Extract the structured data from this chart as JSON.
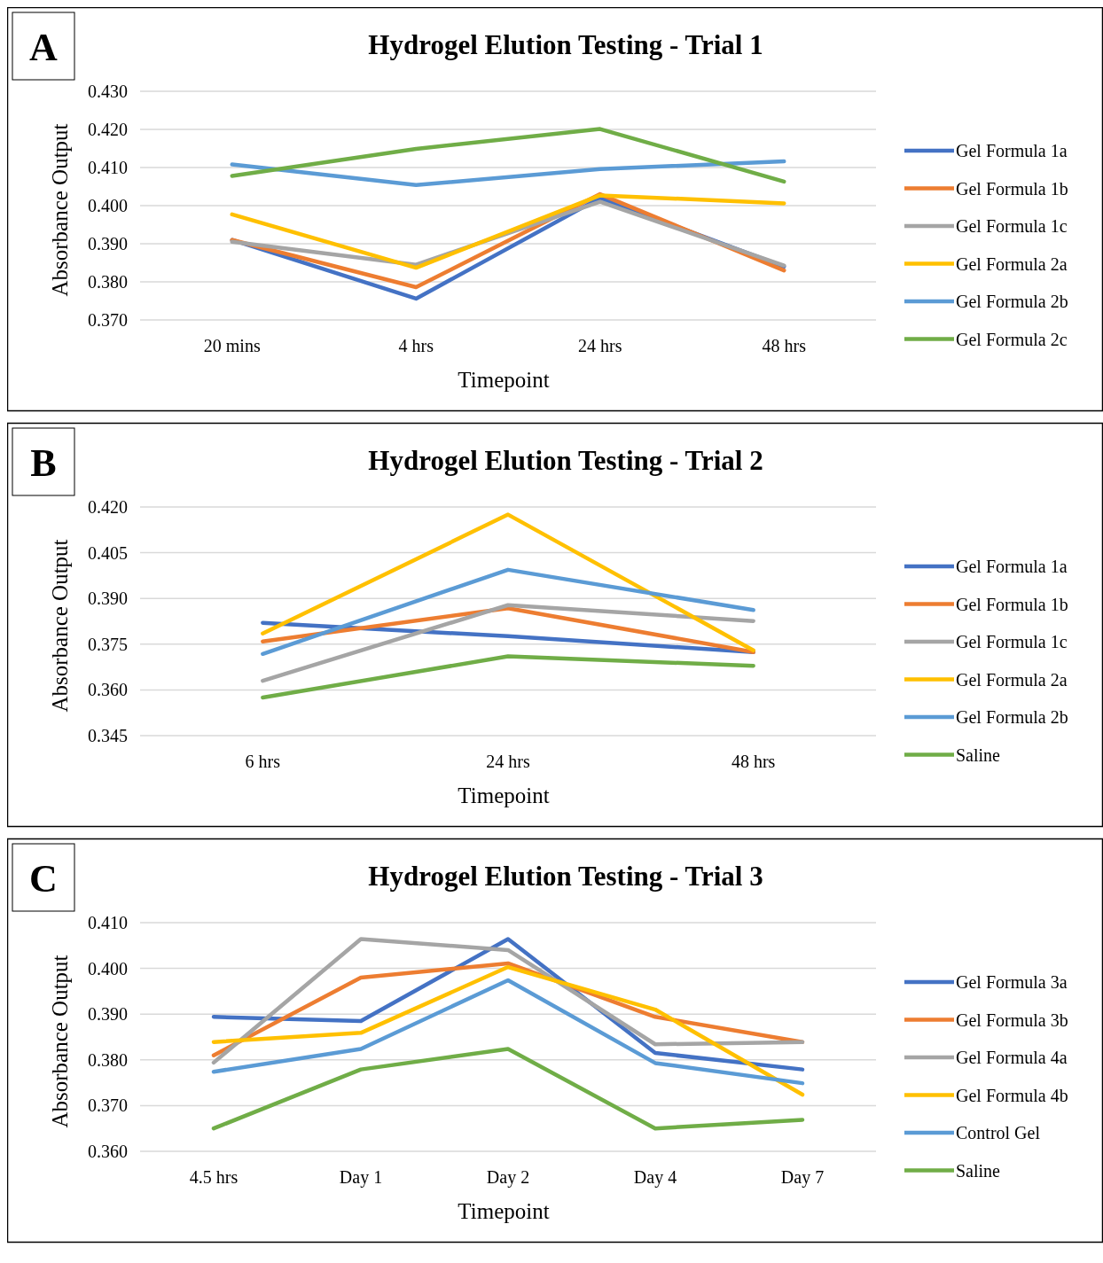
{
  "chart_data": [
    {
      "type": "line",
      "title": "Hydrogel Elution Testing - Trial 1",
      "xlabel": "Timepoint",
      "ylabel": "Absorbance Output",
      "annotations": [
        "A"
      ],
      "categories": [
        "20 mins",
        "4 hrs",
        "24 hrs",
        "48 hrs"
      ],
      "ylim": [
        0.37,
        0.43
      ],
      "yticks": [
        {
          "value": 0.37,
          "label": "0.370"
        },
        {
          "value": 0.38,
          "label": "0.380"
        },
        {
          "value": 0.39,
          "label": "0.390"
        },
        {
          "value": 0.4,
          "label": "0.400"
        },
        {
          "value": 0.41,
          "label": "0.410"
        },
        {
          "value": 0.42,
          "label": "0.420"
        },
        {
          "value": 0.43,
          "label": "0.430"
        }
      ],
      "grid": "y",
      "legend": "right",
      "marker": "none",
      "line_style": "solid",
      "series": [
        {
          "name": "Gel Formula 1a",
          "color": "#4472c4",
          "values": [
            0.391,
            0.3756,
            0.402,
            0.384
          ]
        },
        {
          "name": "Gel Formula 1b",
          "color": "#ed7d31",
          "values": [
            0.391,
            0.3786,
            0.403,
            0.383
          ]
        },
        {
          "name": "Gel Formula 1c",
          "color": "#a5a5a5",
          "values": [
            0.3905,
            0.3845,
            0.401,
            0.3843
          ]
        },
        {
          "name": "Gel Formula 2a",
          "color": "#ffc000",
          "values": [
            0.3977,
            0.3837,
            0.4027,
            0.4006
          ]
        },
        {
          "name": "Gel Formula 2b",
          "color": "#5b9bd5",
          "values": [
            0.4108,
            0.4054,
            0.4096,
            0.4116
          ]
        },
        {
          "name": "Gel Formula 2c",
          "color": "#70ad47",
          "values": [
            0.4078,
            0.4149,
            0.4201,
            0.4063
          ]
        }
      ]
    },
    {
      "type": "line",
      "title": "Hydrogel Elution Testing - Trial 2",
      "xlabel": "Timepoint",
      "ylabel": "Absorbance Output",
      "annotations": [
        "B"
      ],
      "categories": [
        "6 hrs",
        "24 hrs",
        "48 hrs"
      ],
      "ylim": [
        0.345,
        0.42
      ],
      "yticks": [
        0.345,
        {
          "value": 0.36,
          "label": "0.360"
        },
        0.375,
        {
          "value": 0.39,
          "label": "0.390"
        },
        0.405,
        {
          "value": 0.42,
          "label": "0.420"
        }
      ],
      "grid": "y",
      "legend": "right",
      "marker": "none",
      "line_style": "solid",
      "series": [
        {
          "name": "Gel Formula 1a",
          "color": "#4472c4",
          "values": [
            0.382,
            0.3776,
            0.3724
          ]
        },
        {
          "name": "Gel Formula 1b",
          "color": "#ed7d31",
          "values": [
            0.3759,
            0.3868,
            0.3724
          ]
        },
        {
          "name": "Gel Formula 1c",
          "color": "#a5a5a5",
          "values": [
            0.363,
            0.3878,
            0.3826
          ]
        },
        {
          "name": "Gel Formula 2a",
          "color": "#ffc000",
          "values": [
            0.3785,
            0.4175,
            0.373
          ]
        },
        {
          "name": "Gel Formula 2b",
          "color": "#5b9bd5",
          "values": [
            0.3718,
            0.3994,
            0.3862
          ]
        },
        {
          "name": "Saline",
          "color": "#70ad47",
          "values": [
            0.3575,
            0.371,
            0.3679
          ]
        }
      ]
    },
    {
      "type": "line",
      "title": "Hydrogel Elution Testing - Trial 3",
      "xlabel": "Timepoint",
      "ylabel": "Absorbance Output",
      "annotations": [
        "C"
      ],
      "categories": [
        "4.5 hrs",
        "Day 1",
        "Day 2",
        "Day 4",
        "Day 7"
      ],
      "ylim": [
        0.36,
        0.41
      ],
      "yticks": [
        {
          "value": 0.36,
          "label": "0.360"
        },
        {
          "value": 0.37,
          "label": "0.370"
        },
        {
          "value": 0.38,
          "label": "0.380"
        },
        {
          "value": 0.39,
          "label": "0.390"
        },
        {
          "value": 0.4,
          "label": "0.400"
        },
        {
          "value": 0.41,
          "label": "0.410"
        }
      ],
      "grid": "y",
      "legend": "right",
      "marker": "none",
      "line_style": "solid",
      "series": [
        {
          "name": "Gel Formula 3a",
          "color": "#4472c4",
          "values": [
            0.3894,
            0.3885,
            0.4064,
            0.3815,
            0.3779
          ]
        },
        {
          "name": "Gel Formula 3b",
          "color": "#ed7d31",
          "values": [
            0.381,
            0.398,
            0.4011,
            0.3894,
            0.3839
          ]
        },
        {
          "name": "Gel Formula 4a",
          "color": "#a5a5a5",
          "values": [
            0.3794,
            0.4064,
            0.404,
            0.3834,
            0.3839
          ]
        },
        {
          "name": "Gel Formula 4b",
          "color": "#ffc000",
          "values": [
            0.3839,
            0.3859,
            0.4003,
            0.391,
            0.3724
          ]
        },
        {
          "name": "Control Gel",
          "color": "#5b9bd5",
          "values": [
            0.3774,
            0.3824,
            0.3974,
            0.3793,
            0.3749
          ]
        },
        {
          "name": "Saline",
          "color": "#70ad47",
          "values": [
            0.365,
            0.3779,
            0.3824,
            0.365,
            0.3669
          ]
        }
      ]
    }
  ]
}
